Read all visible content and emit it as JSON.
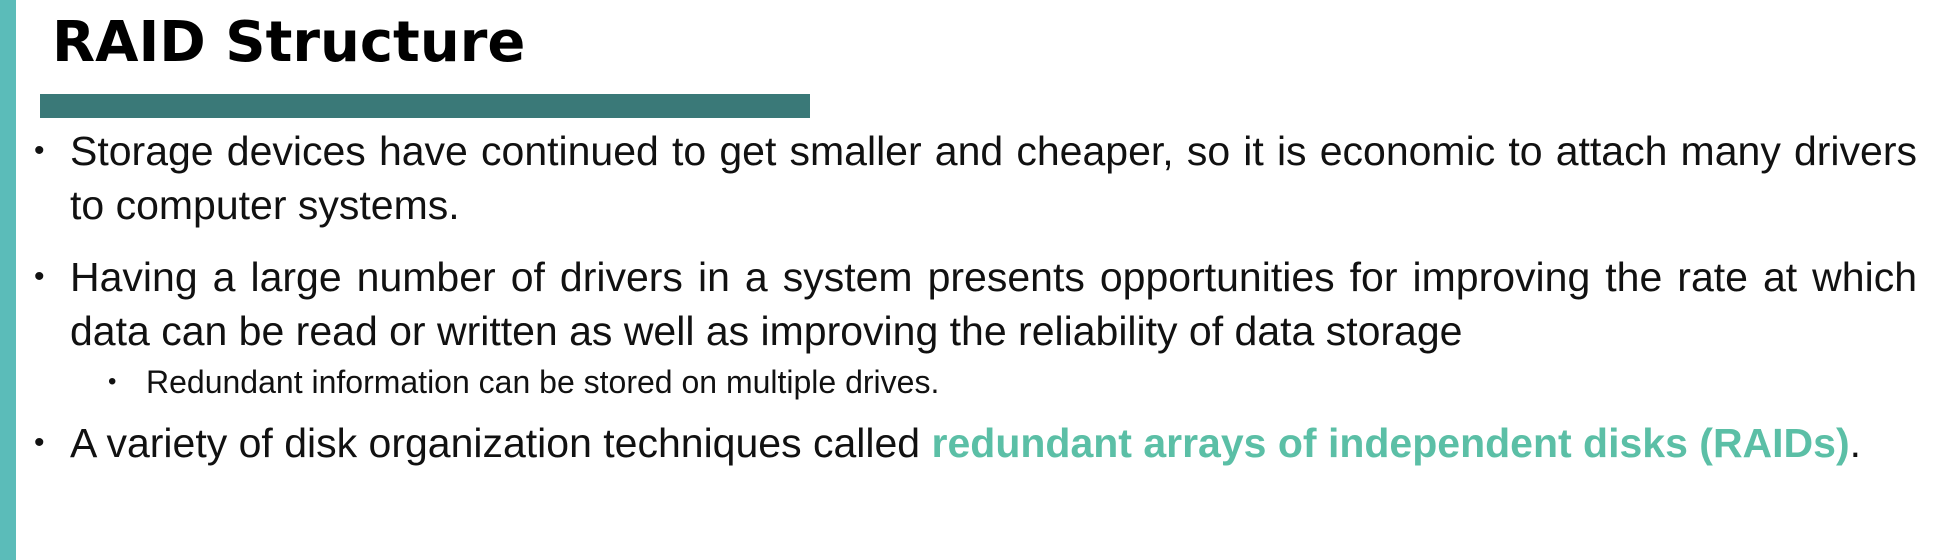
{
  "slide": {
    "title": "RAID Structure",
    "accent_color": "#5bbcb9",
    "underline_color": "#3a7978",
    "highlight_color": "#5bbfa6"
  },
  "bullets": [
    {
      "text": "Storage devices have continued to get smaller and cheaper, so it is economic to attach many drivers to computer systems."
    },
    {
      "text": "Having a large number of drivers in a system presents opportunities for improving the rate at which data can be read or written as well as improving the reliability of data storage",
      "sub_bullets": [
        {
          "text": "Redundant information can be stored on multiple drives."
        }
      ]
    },
    {
      "text_before": "A variety of disk organization techniques called ",
      "highlight": "redundant arrays of independent disks (RAIDs)",
      "text_after": "."
    }
  ]
}
